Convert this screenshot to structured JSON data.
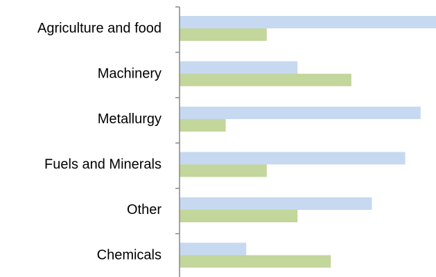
{
  "chart_data": {
    "type": "bar",
    "orientation": "horizontal",
    "title": "",
    "xlabel": "",
    "ylabel": "",
    "categories": [
      "Agriculture and food",
      "Machinery",
      "Metallurgy",
      "Fuels and Minerals",
      "Other",
      "Chemicals"
    ],
    "series": [
      {
        "values": [
          100,
          46,
          94,
          88,
          75,
          26
        ],
        "color": "#c6d9f1"
      },
      {
        "values": [
          34,
          67,
          18,
          34,
          46,
          59
        ],
        "color": "#c3d69b"
      }
    ],
    "xlim": [
      0,
      100
    ],
    "grid": false,
    "legend": "none",
    "axis_color": "#868686"
  }
}
